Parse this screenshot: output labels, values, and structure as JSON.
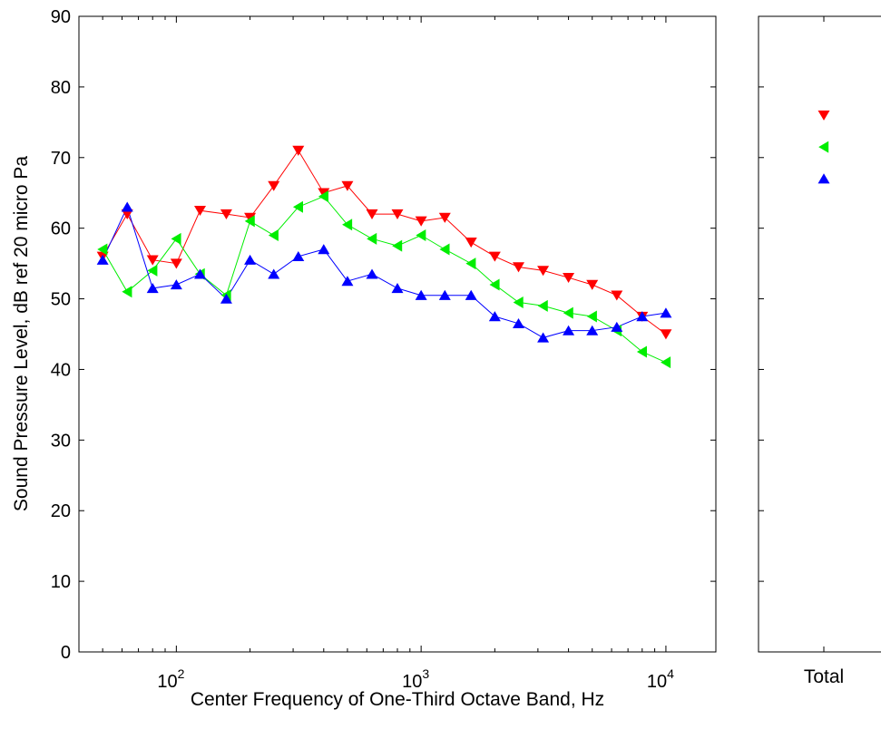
{
  "chart_data": [
    {
      "type": "line",
      "xlabel": "Center Frequency of One-Third Octave Band, Hz",
      "ylabel": "Sound Pressure Level, dB ref 20 micro Pa",
      "xscale": "log",
      "xlim": [
        40,
        16000
      ],
      "ylim": [
        0,
        90
      ],
      "yticks": [
        0,
        10,
        20,
        30,
        40,
        50,
        60,
        70,
        80,
        90
      ],
      "xticks": [
        {
          "value": 100,
          "base": "10",
          "exp": "2"
        },
        {
          "value": 1000,
          "base": "10",
          "exp": "3"
        },
        {
          "value": 10000,
          "base": "10",
          "exp": "4"
        }
      ],
      "grid": false,
      "x": [
        50,
        63,
        80,
        100,
        125,
        160,
        200,
        250,
        315,
        400,
        500,
        630,
        800,
        1000,
        1250,
        1600,
        2000,
        2500,
        3150,
        4000,
        5000,
        6300,
        8000,
        10000
      ],
      "series": [
        {
          "color": "#ff0000",
          "marker": "triangle-down",
          "values": [
            56,
            62,
            55.5,
            55,
            62.5,
            62,
            61.5,
            66,
            71,
            65,
            66,
            62,
            62,
            61,
            61.5,
            58,
            56,
            54.5,
            54,
            53,
            52,
            50.5,
            47.5,
            45
          ]
        },
        {
          "color": "#00ee00",
          "marker": "triangle-left",
          "values": [
            57,
            51,
            54,
            58.5,
            53.5,
            50.5,
            61,
            59,
            63,
            64.5,
            60.5,
            58.5,
            57.5,
            59,
            57,
            55,
            52,
            49.5,
            49,
            48,
            47.5,
            45.5,
            42.5,
            41
          ]
        },
        {
          "color": "#0000ff",
          "marker": "triangle-up",
          "values": [
            55.5,
            63,
            51.5,
            52,
            53.5,
            50,
            55.5,
            53.5,
            56,
            57,
            52.5,
            53.5,
            51.5,
            50.5,
            50.5,
            50.5,
            47.5,
            46.5,
            44.5,
            45.5,
            45.5,
            46,
            47.5,
            48
          ]
        }
      ]
    },
    {
      "type": "scatter",
      "categories": [
        "Total"
      ],
      "ylim": [
        0,
        90
      ],
      "series": [
        {
          "color": "#ff0000",
          "marker": "triangle-down",
          "values": [
            76
          ]
        },
        {
          "color": "#00ee00",
          "marker": "triangle-left",
          "values": [
            71.5
          ]
        },
        {
          "color": "#0000ff",
          "marker": "triangle-up",
          "values": [
            67
          ]
        }
      ]
    }
  ]
}
